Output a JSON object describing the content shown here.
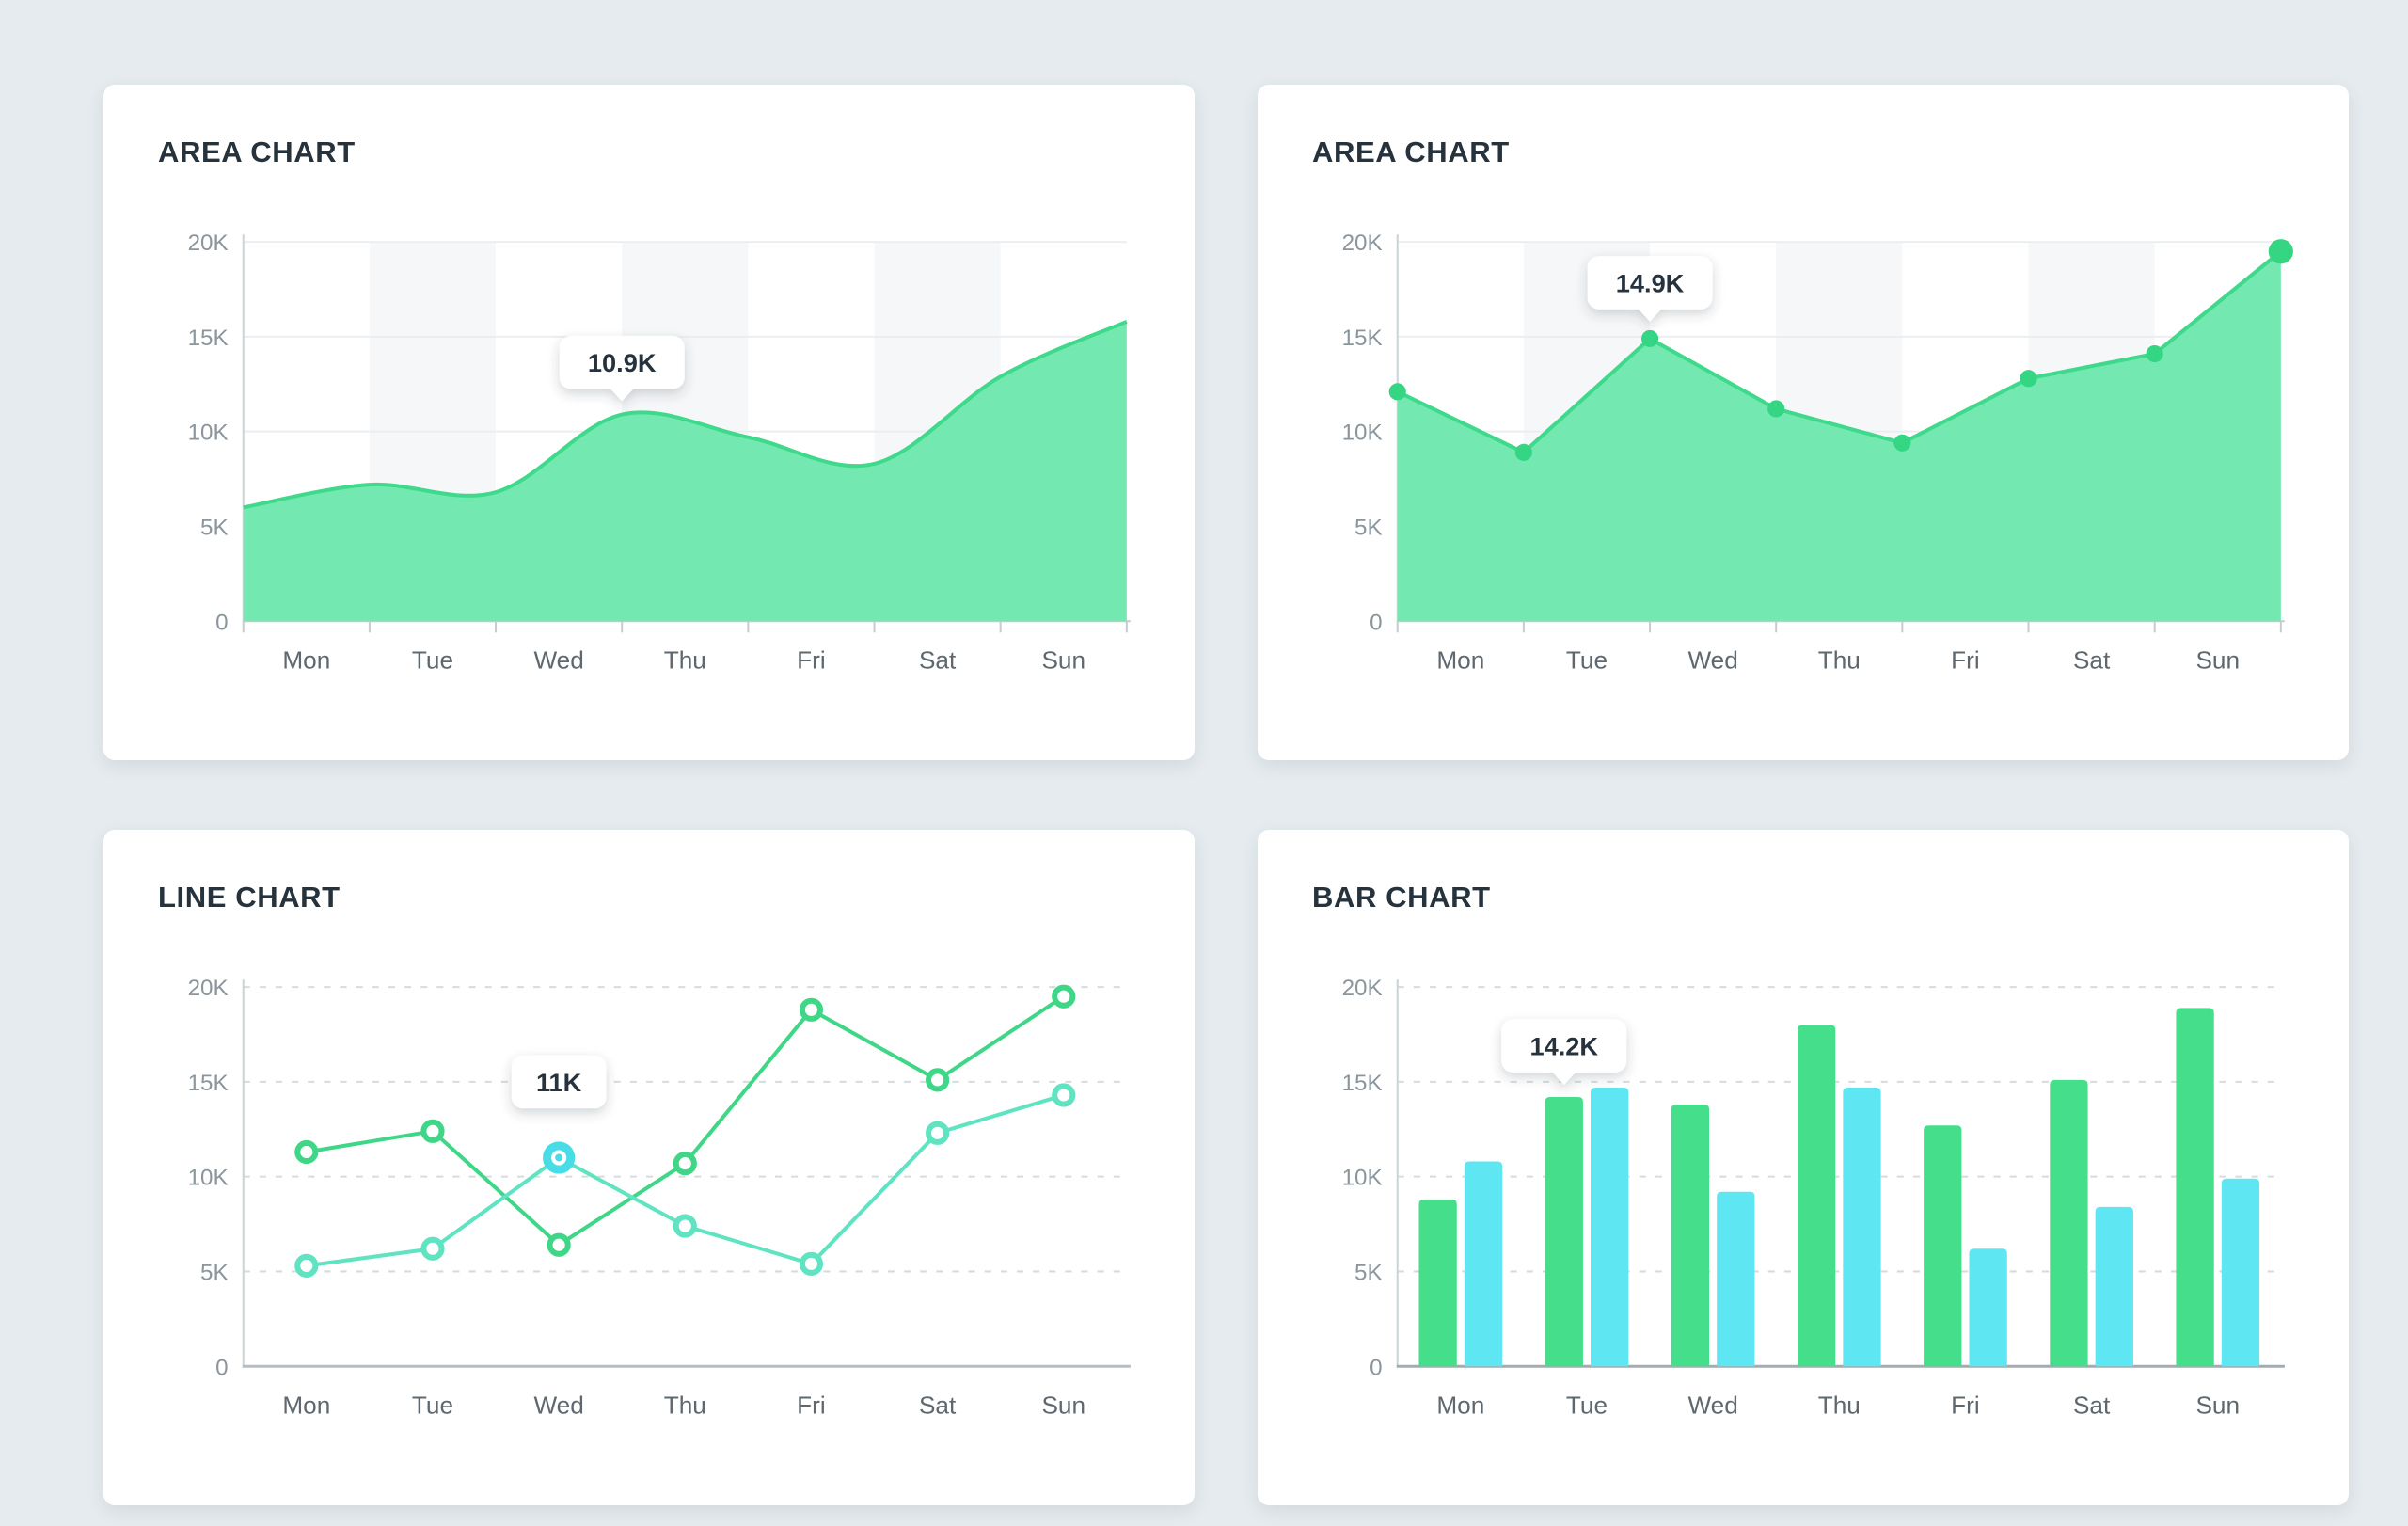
{
  "page": {
    "background_color": "#e5ebee",
    "card_background": "#ffffff"
  },
  "style": {
    "title_color": "#26323c",
    "y_label_color": "#8b959c",
    "x_label_color": "#5f686f",
    "grid_solid_color": "#ebeef0",
    "grid_dashed_color": "#d6dbde",
    "band_color": "#f6f7f8",
    "y_axis_color": "#ccd3d6",
    "x_axis_color_area": "#c6ccd0",
    "x_axis_color_line": "#b6bdc2",
    "x_axis_color_bar": "#a3abb0",
    "area_fill": "#73e9b1",
    "area_stroke": "#3fd98c",
    "area_marker": "#35d683",
    "line_green": "#3fd787",
    "line_teal": "#5fe3c1",
    "bar_green": "#45df8b",
    "bar_cyan": "#5ee7f2",
    "highlight_dot": "#48dde6",
    "tooltip_bg": "#ffffff",
    "tooltip_text": "#26323c"
  },
  "chart_data": [
    {
      "type": "area",
      "variant": "smooth",
      "title": "AREA CHART",
      "categories": [
        "Mon",
        "Tue",
        "Wed",
        "Thu",
        "Fri",
        "Sat",
        "Sun"
      ],
      "ytick_labels": [
        "0",
        "5K",
        "10K",
        "15K",
        "20K"
      ],
      "ylim_k": [
        0,
        20
      ],
      "grid": "solid-horizontal",
      "markers": false,
      "points_at": "column-boundaries",
      "values_k": [
        6.0,
        7.2,
        6.8,
        10.9,
        9.7,
        8.3,
        12.9,
        15.8
      ],
      "tooltip": {
        "label": "10.9K",
        "point_index": 3,
        "value_k": 10.9,
        "pointer": true
      }
    },
    {
      "type": "area",
      "variant": "linear",
      "title": "AREA CHART",
      "categories": [
        "Mon",
        "Tue",
        "Wed",
        "Thu",
        "Fri",
        "Sat",
        "Sun"
      ],
      "ytick_labels": [
        "0",
        "5K",
        "10K",
        "15K",
        "20K"
      ],
      "ylim_k": [
        0,
        20
      ],
      "grid": "solid-horizontal",
      "markers": true,
      "points_at": "column-boundaries",
      "values_k": [
        12.1,
        8.9,
        14.9,
        11.2,
        9.4,
        12.8,
        14.1,
        19.5
      ],
      "tooltip": {
        "label": "14.9K",
        "point_index": 2,
        "value_k": 14.9,
        "pointer": true
      }
    },
    {
      "type": "line",
      "title": "LINE CHART",
      "categories": [
        "Mon",
        "Tue",
        "Wed",
        "Thu",
        "Fri",
        "Sat",
        "Sun"
      ],
      "ytick_labels": [
        "0",
        "5K",
        "10K",
        "15K",
        "20K"
      ],
      "ylim_k": [
        0,
        20
      ],
      "grid": "dashed-horizontal",
      "series": [
        {
          "name": "series-green",
          "color_key": "line_green",
          "values_k": [
            11.3,
            12.4,
            6.4,
            10.7,
            18.8,
            15.1,
            19.5
          ]
        },
        {
          "name": "series-teal",
          "color_key": "line_teal",
          "values_k": [
            5.3,
            6.2,
            11.0,
            7.4,
            5.4,
            12.3,
            14.3
          ]
        }
      ],
      "tooltip": {
        "label": "11K",
        "series_index": 1,
        "point_index": 2,
        "value_k": 11,
        "pointer": false,
        "highlight_dot": true
      }
    },
    {
      "type": "bar",
      "title": "BAR CHART",
      "categories": [
        "Mon",
        "Tue",
        "Wed",
        "Thu",
        "Fri",
        "Sat",
        "Sun"
      ],
      "ytick_labels": [
        "0",
        "5K",
        "10K",
        "15K",
        "20K"
      ],
      "ylim_k": [
        0,
        20
      ],
      "grid": "dashed-horizontal",
      "series": [
        {
          "name": "series-green",
          "color_key": "bar_green",
          "values_k": [
            8.8,
            14.2,
            13.8,
            18.0,
            12.7,
            15.1,
            18.9
          ]
        },
        {
          "name": "series-cyan",
          "color_key": "bar_cyan",
          "values_k": [
            10.8,
            14.7,
            9.2,
            14.7,
            6.2,
            8.4,
            9.9
          ]
        }
      ],
      "tooltip": {
        "label": "14.2K",
        "series_index": 0,
        "point_index": 1,
        "value_k": 14.2,
        "pointer": true
      }
    }
  ]
}
